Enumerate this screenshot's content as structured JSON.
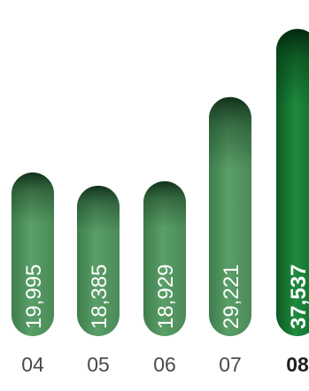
{
  "chart_data": {
    "type": "bar",
    "title": "",
    "xlabel": "",
    "ylabel": "",
    "categories": [
      "04",
      "05",
      "06",
      "07",
      "08"
    ],
    "values": [
      19995,
      18385,
      18929,
      29221,
      37537
    ],
    "value_labels": [
      "19,995",
      "18,385",
      "18,929",
      "29,221",
      "37,537"
    ],
    "highlighted_category": "08",
    "ylim": [
      0,
      40000
    ],
    "grid": false,
    "legend": "none",
    "colors": {
      "bar_light": "#5a9e68",
      "bar_mid": "#4b8a58",
      "bar_shadow": "#1f4a2a",
      "bar_highlight_light": "#1f8a3e",
      "bar_highlight_mid": "#0f6a2c",
      "bar_highlight_shadow": "#053d17",
      "value_text": "#ffffff",
      "category_text": "#4a4a4a",
      "category_text_highlight": "#1f1f1f"
    }
  }
}
